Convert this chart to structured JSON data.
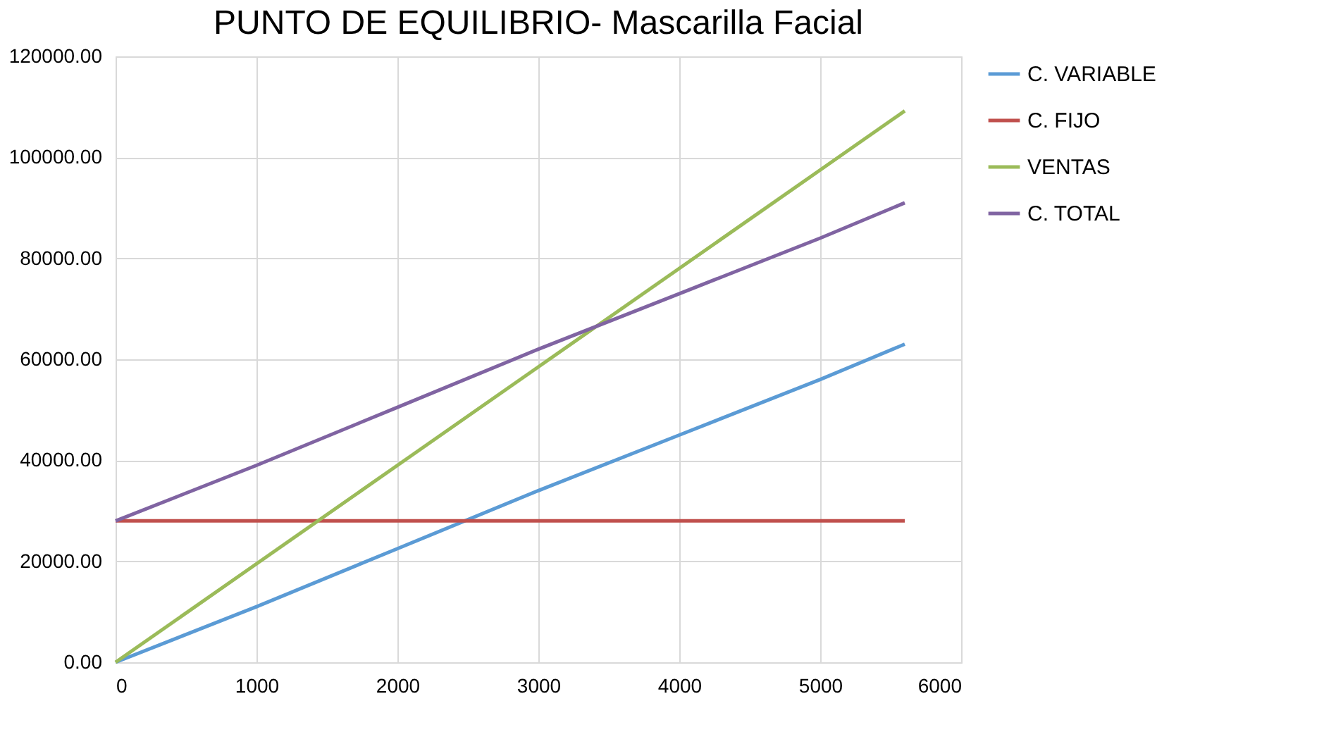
{
  "chart_data": {
    "type": "line",
    "title": "PUNTO DE EQUILIBRIO- Mascarilla Facial",
    "x": [
      0,
      1000,
      2000,
      3000,
      4000,
      5000,
      5600
    ],
    "series": [
      {
        "name": "C. VARIABLE",
        "color": "#5b9bd5",
        "values": [
          0,
          11000,
          22500,
          34000,
          45000,
          56000,
          63000
        ]
      },
      {
        "name": "C. FIJO",
        "color": "#c0504d",
        "values": [
          28000,
          28000,
          28000,
          28000,
          28000,
          28000,
          28000
        ]
      },
      {
        "name": "VENTAS",
        "color": "#9bbb59",
        "values": [
          0,
          19500,
          39000,
          58500,
          78000,
          97500,
          109200
        ]
      },
      {
        "name": "C. TOTAL",
        "color": "#8064a2",
        "values": [
          28000,
          39000,
          50500,
          62000,
          73000,
          84000,
          91000
        ]
      }
    ],
    "xlim": [
      0,
      6000
    ],
    "xticks": [
      0,
      1000,
      2000,
      3000,
      4000,
      5000,
      6000
    ],
    "ylim": [
      0,
      120000
    ],
    "yticks": [
      {
        "value": 0,
        "label": "0.00"
      },
      {
        "value": 20000,
        "label": "20000.00"
      },
      {
        "value": 40000,
        "label": "40000.00"
      },
      {
        "value": 60000,
        "label": "60000.00"
      },
      {
        "value": 80000,
        "label": "80000.00"
      },
      {
        "value": 100000,
        "label": "100000.00"
      },
      {
        "value": 120000,
        "label": "120000.00"
      }
    ],
    "grid": true,
    "legend": "right",
    "marker": "none",
    "line_style": "solid"
  }
}
